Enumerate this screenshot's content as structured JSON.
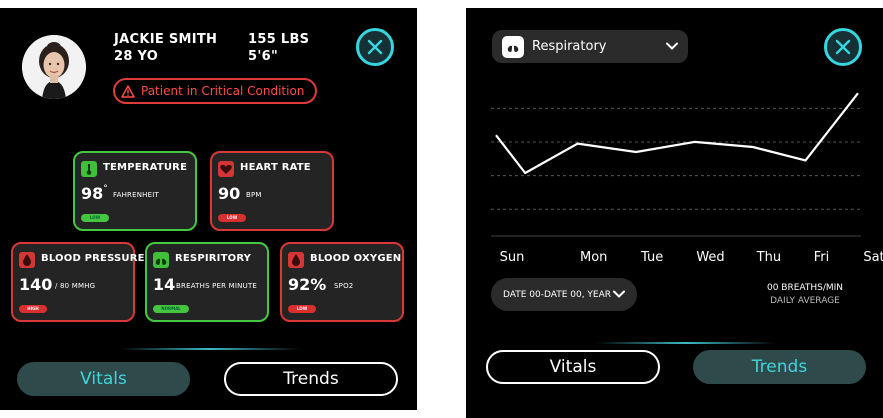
{
  "vitals_screen": {
    "patient": {
      "name": "JACKIE SMITH",
      "age": "28 YO",
      "weight": "155 LBS",
      "height": "5'6\"",
      "condition": "Patient in Critical Condition"
    },
    "cards": [
      {
        "id": "temperature",
        "name": "TEMPERATURE",
        "value": "98",
        "sup": "°",
        "unit": "FAHRENHEIT",
        "status": "LOW",
        "color": "green"
      },
      {
        "id": "heart-rate",
        "name": "HEART RATE",
        "value": "90",
        "unit": "BPM",
        "status": "LOW",
        "color": "red"
      },
      {
        "id": "blood-pressure",
        "name": "BLOOD PRESSURE",
        "value": "140",
        "unit": "/ 80 MMHG",
        "status": "HIGH",
        "color": "red"
      },
      {
        "id": "respiratory",
        "name": "RESPIRITORY",
        "value": "14",
        "unit": "BREATHS PER MINUTE",
        "status": "NORMAL",
        "color": "green"
      },
      {
        "id": "blood-oxygen",
        "name": "BLOOD OXYGEN",
        "value": "92%",
        "unit": "SPO2",
        "status": "LOW",
        "color": "red"
      }
    ],
    "tabs": {
      "vitals": "Vitals",
      "trends": "Trends"
    }
  },
  "trends_screen": {
    "metric": "Respiratory",
    "date_range": "DATE 00-DATE 00, YEAR",
    "average_value": "00 BREATHS/MIN",
    "average_label": "DAILY AVERAGE",
    "tabs": {
      "vitals": "Vitals",
      "trends": "Trends"
    },
    "chart_data": {
      "type": "line",
      "categories": [
        "Sun",
        "Mon",
        "Tue",
        "Wed",
        "Thu",
        "Fri",
        "Sat"
      ],
      "x_tick_positions": [
        0,
        1.4,
        2.4,
        3.4,
        4.4,
        5.3,
        6.2
      ],
      "series": [
        {
          "x": [
            0,
            0.5,
            1.4,
            2.4,
            3.4,
            4.4,
            5.3,
            6.2
          ],
          "values": [
            12,
            7.5,
            11,
            10,
            11.2,
            10.6,
            9,
            17
          ]
        }
      ],
      "ylim": [
        0,
        20
      ],
      "grid": true,
      "line_color": "#ffffff",
      "grid_color": "#555555"
    }
  },
  "colors": {
    "accent": "#35d6df",
    "normal": "#43c83f",
    "critical": "#d83838",
    "background": "#000000"
  }
}
